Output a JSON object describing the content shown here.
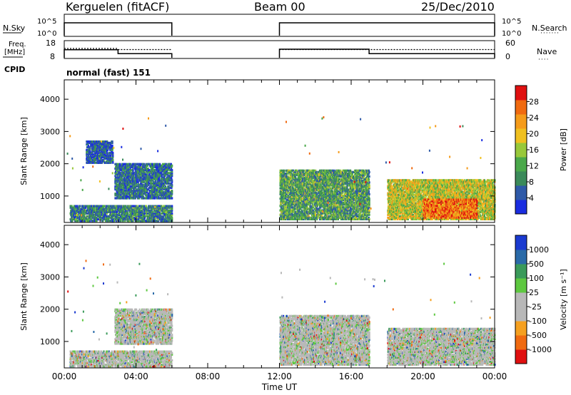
{
  "header": {
    "station": "Kerguelen (fitACF)",
    "beam": "Beam 00",
    "date": "25/Dec/2010"
  },
  "status_panels": {
    "nsky_label": "N.Sky",
    "nsky_ticks": [
      "10^5",
      "10^0"
    ],
    "nsearch_label": "N.Search",
    "nsearch_ticks": [
      "10^5",
      "10^0"
    ],
    "freq_label_1": "Freq.",
    "freq_label_2": "[MHz]",
    "freq_ticks": [
      "18",
      "8"
    ],
    "nave_label": "Nave",
    "nave_ticks": [
      "60",
      "0"
    ],
    "cpid_label": "CPID",
    "cpid_value": "normal (fast) 151",
    "freq_segments": [
      {
        "start": 0,
        "end": 3,
        "mhz": 12.9
      },
      {
        "start": 3,
        "end": 6,
        "mhz": 10.5
      },
      {
        "start": 12,
        "end": 17,
        "mhz": 13.2
      },
      {
        "start": 17,
        "end": 24,
        "mhz": 10.5
      }
    ],
    "nave_segments": [
      {
        "start": 0,
        "end": 3,
        "val": 34
      },
      {
        "start": 3,
        "end": 6,
        "val": 30
      },
      {
        "start": 12,
        "end": 24,
        "val": 30
      }
    ],
    "data_gaps": [
      [
        6,
        12
      ]
    ]
  },
  "chart_data": [
    {
      "type": "heatmap",
      "panel": "power",
      "ylabel": "Slant Range [km]",
      "ylim": [
        180,
        4600
      ],
      "yticks": [
        "1000",
        "2000",
        "3000",
        "4000"
      ],
      "xlim": [
        0,
        24
      ],
      "colorbar_label": "Power [dB]",
      "colorbar_ticks": [
        "28",
        "24",
        "20",
        "16",
        "12",
        "8",
        "4"
      ],
      "colorscale": [
        "#1a2de0",
        "#2f5aa8",
        "#3b8a5a",
        "#4aa84a",
        "#98c83a",
        "#f0c020",
        "#f59b1a",
        "#f06a10",
        "#e01010"
      ],
      "regions": [
        {
          "t0": 0.3,
          "t1": 6.0,
          "r0": 200,
          "r1": 700,
          "level": 0.25
        },
        {
          "t0": 1.2,
          "t1": 2.7,
          "r0": 2000,
          "r1": 2700,
          "level": 0.15
        },
        {
          "t0": 2.8,
          "t1": 6.0,
          "r0": 900,
          "r1": 2000,
          "level": 0.22
        },
        {
          "t0": 12.0,
          "t1": 17.0,
          "r0": 250,
          "r1": 1800,
          "level": 0.35
        },
        {
          "t0": 18.0,
          "t1": 24.0,
          "r0": 250,
          "r1": 1500,
          "level": 0.55
        },
        {
          "t0": 20.0,
          "t1": 23.0,
          "r0": 300,
          "r1": 900,
          "level": 0.8
        }
      ]
    },
    {
      "type": "heatmap",
      "panel": "velocity",
      "ylabel": "Slant Range [km]",
      "ylim": [
        180,
        4600
      ],
      "yticks": [
        "1000",
        "2000",
        "3000",
        "4000"
      ],
      "xlim": [
        0,
        24
      ],
      "xticks": [
        "00:00",
        "04:00",
        "08:00",
        "12:00",
        "16:00",
        "20:00",
        "00:00"
      ],
      "xlabel": "Time UT",
      "colorbar_label": "Velocity [m s⁻¹]",
      "colorbar_ticks": [
        "1000",
        "500",
        "100",
        "25",
        "-25",
        "-100",
        "-500",
        "-1000"
      ],
      "colorscale": [
        "#e01010",
        "#f06a10",
        "#f5a020",
        "#b8b8b8",
        "#b8b8b8",
        "#5ec840",
        "#3a9a5a",
        "#2a6aa8",
        "#1a3ad0"
      ],
      "regions": [
        {
          "t0": 0.3,
          "t1": 6.0,
          "r0": 200,
          "r1": 700,
          "level": 0.5
        },
        {
          "t0": 2.8,
          "t1": 6.0,
          "r0": 900,
          "r1": 2000,
          "level": 0.5
        },
        {
          "t0": 12.0,
          "t1": 17.0,
          "r0": 250,
          "r1": 1800,
          "level": 0.5
        },
        {
          "t0": 18.0,
          "t1": 24.0,
          "r0": 250,
          "r1": 1400,
          "level": 0.5
        }
      ]
    }
  ],
  "colors": {
    "axis": "#000000",
    "sky_line": "#000000"
  }
}
